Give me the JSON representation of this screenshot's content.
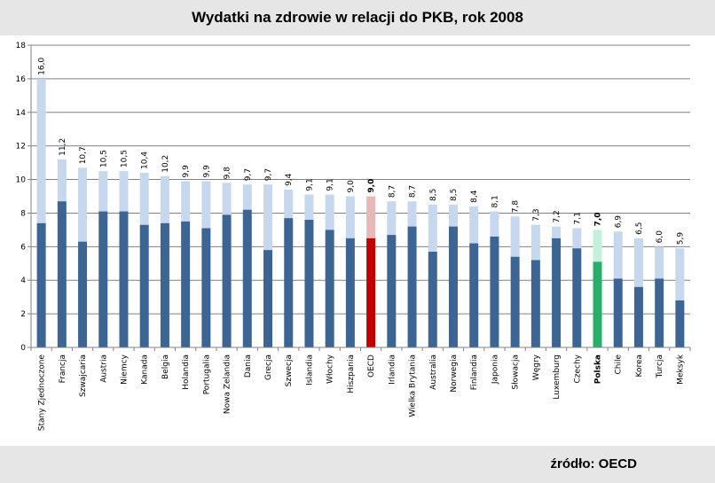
{
  "chart_data": {
    "type": "bar",
    "stacked": true,
    "title": "Wydatki na zdrowie w relacji do PKB, rok 2008",
    "source": "źródło: OECD",
    "xlabel": "",
    "ylabel": "",
    "ylim": [
      0,
      18
    ],
    "yticks": [
      0,
      2,
      4,
      6,
      8,
      10,
      12,
      14,
      16,
      18
    ],
    "grid": true,
    "categories": [
      "Stany Zjednoczone",
      "Francja",
      "Szwajcaria",
      "Austria",
      "Niemcy",
      "Kanada",
      "Belgia",
      "Holandia",
      "Portugalia",
      "Nowa Zelandia",
      "Dania",
      "Grecja",
      "Szwecja",
      "Islandia",
      "Włochy",
      "Hiszpania",
      "OECD",
      "Irlandia",
      "Wielka Brytania",
      "Australia",
      "Norwegia",
      "Finlandia",
      "Japonia",
      "Słowacja",
      "Węgry",
      "Luxemburg",
      "Czechy",
      "Polska",
      "Chile",
      "Korea",
      "Turcja",
      "Meksyk"
    ],
    "totals": [
      16.0,
      11.2,
      10.7,
      10.5,
      10.5,
      10.4,
      10.2,
      9.9,
      9.9,
      9.8,
      9.7,
      9.7,
      9.4,
      9.1,
      9.1,
      9.0,
      9.0,
      8.7,
      8.7,
      8.5,
      8.5,
      8.4,
      8.1,
      7.8,
      7.3,
      7.2,
      7.1,
      7.0,
      6.9,
      6.5,
      6.0,
      5.9
    ],
    "total_labels": [
      "16,0",
      "11,2",
      "10,7",
      "10,5",
      "10,5",
      "10,4",
      "10,2",
      "9,9",
      "9,9",
      "9,8",
      "9,7",
      "9,7",
      "9,4",
      "9,1",
      "9,1",
      "9,0",
      "9,0",
      "8,7",
      "8,7",
      "8,5",
      "8,5",
      "8,4",
      "8,1",
      "7,8",
      "7,3",
      "7,2",
      "7,1",
      "7,0",
      "6,9",
      "6,5",
      "6,0",
      "5,9"
    ],
    "public_estimated": [
      7.4,
      8.7,
      6.3,
      8.1,
      8.1,
      7.3,
      7.4,
      7.5,
      7.1,
      7.9,
      8.2,
      5.8,
      7.7,
      7.6,
      7.0,
      6.5,
      6.5,
      6.7,
      7.2,
      5.7,
      7.2,
      6.2,
      6.6,
      5.4,
      5.2,
      6.5,
      5.9,
      5.1,
      4.1,
      3.6,
      4.1,
      2.8
    ],
    "highlight": {
      "OECD": "oecd",
      "Polska": "poland"
    },
    "colors": {
      "public": "#3d6594",
      "rest": "#c6d7ee",
      "oecd_public": "#c00000",
      "oecd_rest": "#e6b8b8",
      "poland_public": "#27ae6b",
      "poland_rest": "#c3f0dc",
      "grid": "#808080"
    }
  }
}
